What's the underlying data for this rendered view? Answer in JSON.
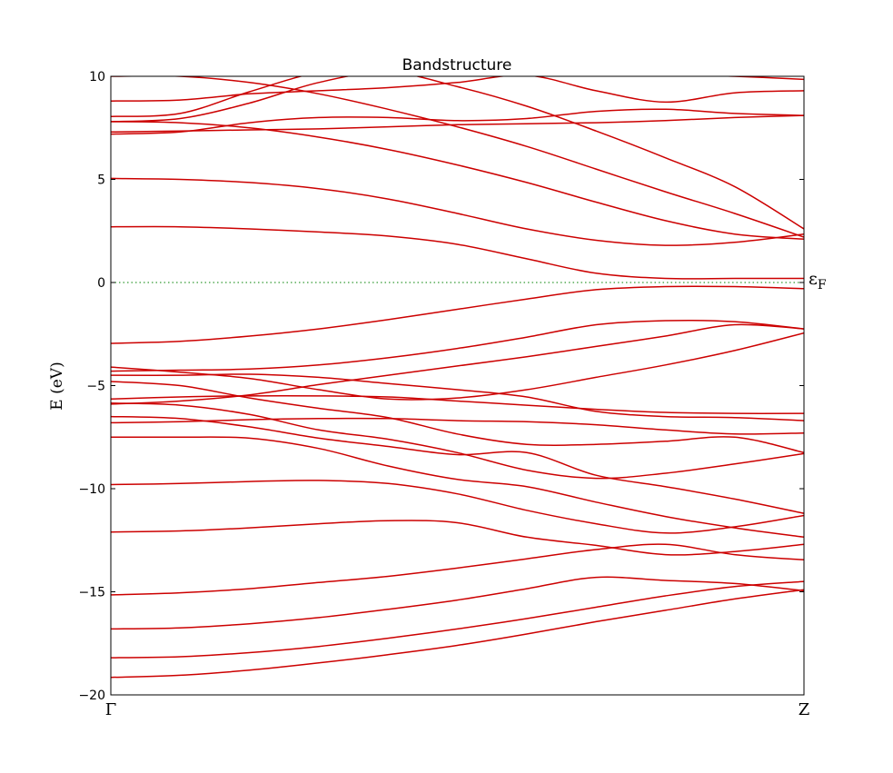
{
  "chart_data": {
    "type": "line",
    "title": "Bandstructure",
    "ylabel": "E (eV)",
    "xlabel": "",
    "ylim": [
      -20,
      10
    ],
    "xlim": [
      0,
      1
    ],
    "yticks": [
      10,
      5,
      0,
      -5,
      -10,
      -15,
      -20
    ],
    "ytick_labels": [
      "10",
      "5",
      "0",
      "−5",
      "−10",
      "−15",
      "−20"
    ],
    "xticks": [
      0,
      1
    ],
    "xtick_labels": [
      "Γ",
      "Z"
    ],
    "fermi_level": 0,
    "fermi_label": "ε",
    "fermi_label_sub": "F",
    "grid": false,
    "line_color": "#cc0000",
    "fermi_color": "#008000",
    "series": [
      {
        "x": [
          0,
          0.1,
          0.2,
          0.3,
          0.4,
          0.5,
          0.6,
          0.7,
          0.8,
          0.9,
          1.0
        ],
        "values": [
          -19.15,
          -19.05,
          -18.8,
          -18.45,
          -18.05,
          -17.6,
          -17.05,
          -16.45,
          -15.9,
          -15.35,
          -14.9
        ]
      },
      {
        "x": [
          0,
          0.1,
          0.2,
          0.3,
          0.4,
          0.5,
          0.6,
          0.7,
          0.8,
          0.9,
          1.0
        ],
        "values": [
          -18.2,
          -18.15,
          -17.95,
          -17.65,
          -17.25,
          -16.8,
          -16.3,
          -15.75,
          -15.2,
          -14.75,
          -14.5
        ]
      },
      {
        "x": [
          0,
          0.1,
          0.2,
          0.3,
          0.4,
          0.5,
          0.6,
          0.7,
          0.8,
          0.9,
          1.0
        ],
        "values": [
          -16.8,
          -16.75,
          -16.55,
          -16.25,
          -15.85,
          -15.4,
          -14.85,
          -14.3,
          -14.45,
          -14.6,
          -14.95
        ]
      },
      {
        "x": [
          0,
          0.1,
          0.2,
          0.3,
          0.4,
          0.5,
          0.6,
          0.7,
          0.8,
          0.9,
          1.0
        ],
        "values": [
          -15.15,
          -15.05,
          -14.85,
          -14.55,
          -14.25,
          -13.85,
          -13.4,
          -12.95,
          -12.7,
          -13.2,
          -13.45
        ]
      },
      {
        "x": [
          0,
          0.1,
          0.2,
          0.3,
          0.4,
          0.5,
          0.6,
          0.7,
          0.8,
          0.9,
          1.0
        ],
        "values": [
          -12.1,
          -12.05,
          -11.9,
          -11.7,
          -11.55,
          -11.65,
          -12.35,
          -12.75,
          -13.2,
          -13.05,
          -12.7
        ]
      },
      {
        "x": [
          0,
          0.1,
          0.2,
          0.3,
          0.4,
          0.5,
          0.6,
          0.7,
          0.8,
          0.9,
          1.0
        ],
        "values": [
          -9.8,
          -9.75,
          -9.65,
          -9.6,
          -9.75,
          -10.25,
          -11.05,
          -11.7,
          -12.15,
          -11.85,
          -11.3
        ]
      },
      {
        "x": [
          0,
          0.1,
          0.2,
          0.3,
          0.4,
          0.5,
          0.6,
          0.7,
          0.8,
          0.9,
          1.0
        ],
        "values": [
          -7.5,
          -7.5,
          -7.55,
          -8.05,
          -8.9,
          -9.55,
          -9.9,
          -10.65,
          -11.35,
          -11.9,
          -12.35
        ]
      },
      {
        "x": [
          0,
          0.1,
          0.2,
          0.3,
          0.4,
          0.5,
          0.6,
          0.7,
          0.8,
          0.9,
          1.0
        ],
        "values": [
          -6.8,
          -6.75,
          -6.65,
          -6.6,
          -6.6,
          -6.7,
          -6.75,
          -6.9,
          -7.15,
          -7.35,
          -7.3
        ]
      },
      {
        "x": [
          0,
          0.1,
          0.2,
          0.3,
          0.4,
          0.5,
          0.6,
          0.7,
          0.8,
          0.9,
          1.0
        ],
        "values": [
          -6.5,
          -6.6,
          -7.0,
          -7.55,
          -7.95,
          -8.35,
          -8.25,
          -9.35,
          -9.9,
          -10.5,
          -11.2
        ]
      },
      {
        "x": [
          0,
          0.1,
          0.2,
          0.3,
          0.4,
          0.5,
          0.6,
          0.7,
          0.8,
          0.9,
          1.0
        ],
        "values": [
          -5.85,
          -5.95,
          -6.4,
          -7.15,
          -7.6,
          -8.25,
          -9.1,
          -9.5,
          -9.25,
          -8.8,
          -8.3
        ]
      },
      {
        "x": [
          0,
          0.1,
          0.2,
          0.3,
          0.4,
          0.5,
          0.6,
          0.7,
          0.8,
          0.9,
          1.0
        ],
        "values": [
          -5.65,
          -5.55,
          -5.5,
          -5.5,
          -5.55,
          -5.75,
          -5.95,
          -6.15,
          -6.3,
          -6.35,
          -6.35
        ]
      },
      {
        "x": [
          0,
          0.1,
          0.2,
          0.3,
          0.4,
          0.5,
          0.6,
          0.7,
          0.8,
          0.9,
          1.0
        ],
        "values": [
          -4.8,
          -5.0,
          -5.6,
          -6.1,
          -6.55,
          -7.35,
          -7.85,
          -7.85,
          -7.7,
          -7.5,
          -8.25
        ]
      },
      {
        "x": [
          0,
          0.1,
          0.2,
          0.3,
          0.4,
          0.5,
          0.6,
          0.7,
          0.8,
          0.9,
          1.0
        ],
        "values": [
          -4.5,
          -4.5,
          -4.45,
          -4.6,
          -4.9,
          -5.2,
          -5.55,
          -6.25,
          -6.5,
          -6.55,
          -6.7
        ]
      },
      {
        "x": [
          0,
          0.1,
          0.2,
          0.3,
          0.4,
          0.5,
          0.6,
          0.7,
          0.8,
          0.9,
          1.0
        ],
        "values": [
          -4.1,
          -4.35,
          -4.65,
          -5.2,
          -5.65,
          -5.6,
          -5.2,
          -4.6,
          -4.0,
          -3.3,
          -2.45
        ]
      },
      {
        "x": [
          0,
          0.1,
          0.2,
          0.3,
          0.4,
          0.5,
          0.6,
          0.7,
          0.8,
          0.9,
          1.0
        ],
        "values": [
          -5.9,
          -5.75,
          -5.45,
          -4.95,
          -4.5,
          -4.05,
          -3.6,
          -3.1,
          -2.6,
          -2.05,
          -2.25
        ]
      },
      {
        "x": [
          0,
          0.1,
          0.2,
          0.3,
          0.4,
          0.5,
          0.6,
          0.7,
          0.8,
          0.9,
          1.0
        ],
        "values": [
          -4.3,
          -4.25,
          -4.2,
          -4.0,
          -3.65,
          -3.2,
          -2.65,
          -2.05,
          -1.85,
          -1.9,
          -2.25
        ]
      },
      {
        "x": [
          0,
          0.1,
          0.2,
          0.3,
          0.4,
          0.5,
          0.6,
          0.7,
          0.8,
          0.9,
          1.0
        ],
        "values": [
          -2.95,
          -2.85,
          -2.6,
          -2.25,
          -1.8,
          -1.3,
          -0.8,
          -0.35,
          -0.2,
          -0.2,
          -0.3
        ]
      },
      {
        "x": [
          0,
          0.1,
          0.2,
          0.3,
          0.4,
          0.5,
          0.6,
          0.7,
          0.8,
          0.9,
          1.0
        ],
        "values": [
          2.7,
          2.7,
          2.6,
          2.45,
          2.25,
          1.85,
          1.15,
          0.45,
          0.2,
          0.2,
          0.2
        ]
      },
      {
        "x": [
          0,
          0.1,
          0.2,
          0.3,
          0.4,
          0.5,
          0.6,
          0.7,
          0.8,
          0.9,
          1.0
        ],
        "values": [
          5.05,
          5.0,
          4.85,
          4.55,
          4.05,
          3.35,
          2.6,
          2.05,
          1.8,
          1.95,
          2.35
        ]
      },
      {
        "x": [
          0,
          0.1,
          0.2,
          0.3,
          0.4,
          0.5,
          0.6,
          0.7,
          0.8,
          0.9,
          1.0
        ],
        "values": [
          7.8,
          7.75,
          7.5,
          7.05,
          6.45,
          5.7,
          4.85,
          3.9,
          3.0,
          2.35,
          2.1
        ]
      },
      {
        "x": [
          0,
          0.1,
          0.2,
          0.3,
          0.4,
          0.5,
          0.6,
          0.7,
          0.8,
          0.9,
          1.0
        ],
        "values": [
          7.3,
          7.35,
          7.4,
          7.45,
          7.55,
          7.65,
          7.7,
          7.75,
          7.85,
          8.0,
          8.1
        ]
      },
      {
        "x": [
          0,
          0.1,
          0.2,
          0.3,
          0.4,
          0.5,
          0.6,
          0.7,
          0.8,
          0.9,
          1.0
        ],
        "values": [
          7.2,
          7.3,
          7.75,
          8.0,
          8.0,
          7.85,
          7.95,
          8.3,
          8.4,
          8.2,
          8.1
        ]
      },
      {
        "x": [
          0,
          0.1,
          0.2,
          0.3,
          0.4,
          0.5,
          0.6,
          0.7,
          0.8,
          0.9,
          1.0
        ],
        "values": [
          7.8,
          7.95,
          8.7,
          9.7,
          10.2,
          9.5,
          8.55,
          7.35,
          6.05,
          4.65,
          2.6
        ]
      },
      {
        "x": [
          0,
          0.1,
          0.2,
          0.3,
          0.4,
          0.5,
          0.6,
          0.7,
          0.8,
          0.9,
          1.0
        ],
        "values": [
          8.05,
          8.2,
          9.25,
          10.2,
          10.5,
          10.6,
          10.5,
          10.4,
          10.3,
          10.2,
          10.1
        ]
      },
      {
        "x": [
          0,
          0.1,
          0.2,
          0.3,
          0.4,
          0.5,
          0.6,
          0.7,
          0.8,
          0.9,
          1.0
        ],
        "values": [
          8.8,
          8.85,
          9.15,
          9.3,
          9.45,
          9.7,
          10.05,
          9.3,
          8.75,
          9.2,
          9.3
        ]
      },
      {
        "x": [
          0,
          0.1,
          0.2,
          0.3,
          0.4,
          0.5,
          0.6,
          0.7,
          0.8,
          0.9,
          1.0
        ],
        "values": [
          10.0,
          10.0,
          9.7,
          9.15,
          8.4,
          7.55,
          6.6,
          5.5,
          4.4,
          3.35,
          2.2
        ]
      },
      {
        "x": [
          0,
          0.1,
          0.2,
          0.3,
          0.4,
          0.5,
          0.6,
          0.7,
          0.8,
          0.9,
          1.0
        ],
        "values": [
          10.1,
          10.1,
          10.1,
          10.1,
          10.1,
          10.1,
          10.1,
          10.1,
          10.1,
          10.0,
          9.85
        ]
      }
    ]
  }
}
